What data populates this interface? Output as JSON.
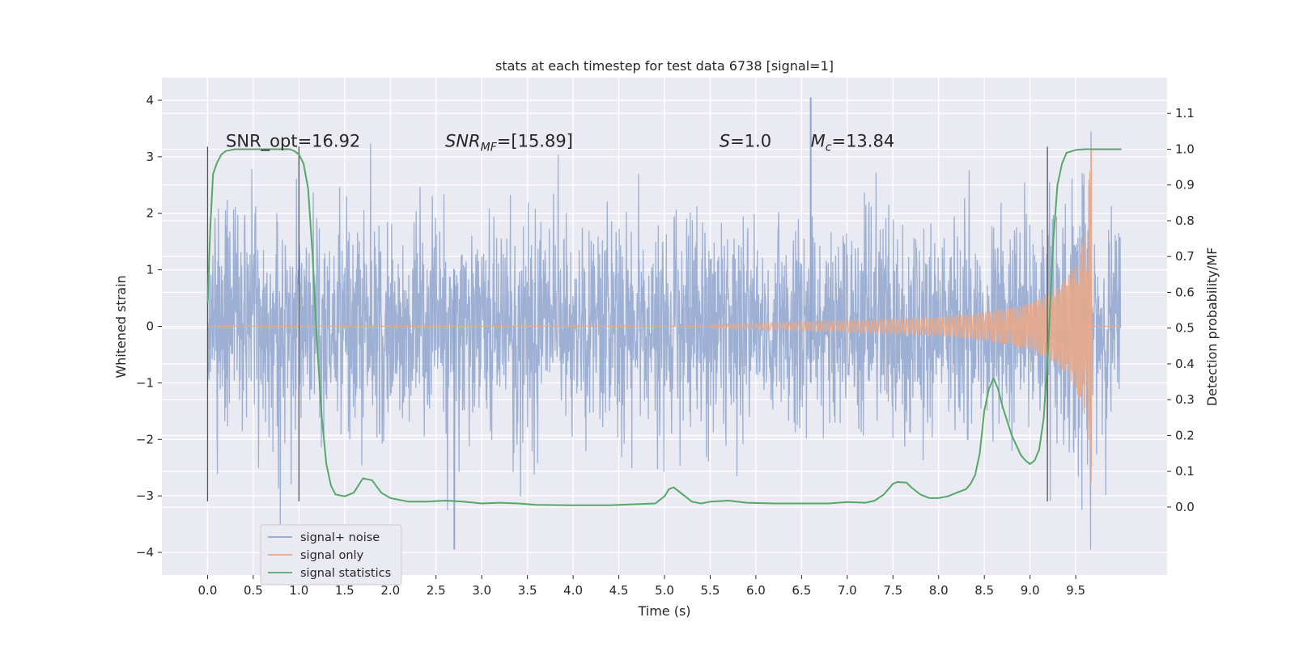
{
  "chart_data": {
    "type": "line",
    "title": "stats at each timestep for test data 6738 [signal=1]",
    "xlabel": "Time (s)",
    "ylabel": "Whitened strain",
    "y2label": "Detection probability/MF",
    "xlim": [
      -0.5,
      10.5
    ],
    "ylim": [
      -4.4,
      4.4
    ],
    "y2lim": [
      -0.19,
      1.2
    ],
    "xticks": [
      0.0,
      0.5,
      1.0,
      1.5,
      2.0,
      2.5,
      3.0,
      3.5,
      4.0,
      4.5,
      5.0,
      5.5,
      6.0,
      6.5,
      7.0,
      7.5,
      8.0,
      8.5,
      9.0,
      9.5
    ],
    "xtick_labels": [
      "0.0",
      "0.5",
      "1.0",
      "1.5",
      "2.0",
      "2.5",
      "3.0",
      "3.5",
      "4.0",
      "4.5",
      "5.0",
      "5.5",
      "6.0",
      "6.5",
      "7.0",
      "7.5",
      "8.0",
      "8.5",
      "9.0",
      "9.5"
    ],
    "yticks": [
      4,
      3,
      2,
      1,
      0,
      -1,
      -2,
      -3,
      -4
    ],
    "ytick_labels": [
      "4",
      "3",
      "2",
      "1",
      "0",
      "−1",
      "−2",
      "−3",
      "−4"
    ],
    "y2ticks": [
      1.1,
      1.0,
      0.9,
      0.8,
      0.7,
      0.6,
      0.5,
      0.4,
      0.3,
      0.2,
      0.1,
      0.0
    ],
    "y2tick_labels": [
      "1.1",
      "1.0",
      "0.9",
      "0.8",
      "0.7",
      "0.6",
      "0.5",
      "0.4",
      "0.3",
      "0.2",
      "0.1",
      "0.0"
    ],
    "grid": true,
    "legend_position": "lower-left",
    "noise_series": {
      "name": "signal+ noise",
      "color": "#8fa6cf",
      "x_range": [
        0.0,
        9.99
      ],
      "typical_envelope": [
        -1.3,
        1.3
      ],
      "max_value": 4.05,
      "min_value": -3.95
    },
    "signal_series": {
      "name": "signal only",
      "color": "#e8a98a",
      "merger_time": 9.67,
      "peak_amplitude": 3.15,
      "envelope": [
        {
          "x": 5.5,
          "amp": 0.03
        },
        {
          "x": 6.0,
          "amp": 0.06
        },
        {
          "x": 6.5,
          "amp": 0.08
        },
        {
          "x": 7.0,
          "amp": 0.1
        },
        {
          "x": 7.5,
          "amp": 0.13
        },
        {
          "x": 8.0,
          "amp": 0.17
        },
        {
          "x": 8.5,
          "amp": 0.25
        },
        {
          "x": 9.0,
          "amp": 0.42
        },
        {
          "x": 9.3,
          "amp": 0.7
        },
        {
          "x": 9.5,
          "amp": 1.1
        },
        {
          "x": 9.6,
          "amp": 1.7
        },
        {
          "x": 9.67,
          "amp": 3.15
        }
      ]
    },
    "stats_series": {
      "name": "signal statistics",
      "color": "#55a868",
      "x": [
        0.0,
        0.03,
        0.06,
        0.1,
        0.15,
        0.2,
        0.3,
        0.5,
        0.7,
        0.9,
        0.95,
        1.0,
        1.05,
        1.1,
        1.15,
        1.2,
        1.25,
        1.3,
        1.35,
        1.4,
        1.5,
        1.6,
        1.7,
        1.8,
        1.9,
        2.0,
        2.2,
        2.4,
        2.6,
        2.8,
        3.0,
        3.2,
        3.4,
        3.6,
        4.0,
        4.4,
        4.7,
        4.9,
        5.0,
        5.05,
        5.1,
        5.2,
        5.3,
        5.4,
        5.5,
        5.7,
        5.9,
        6.2,
        6.5,
        6.8,
        7.0,
        7.2,
        7.3,
        7.4,
        7.5,
        7.55,
        7.65,
        7.7,
        7.8,
        7.9,
        8.0,
        8.1,
        8.2,
        8.3,
        8.35,
        8.4,
        8.45,
        8.5,
        8.55,
        8.6,
        8.65,
        8.7,
        8.8,
        8.9,
        8.95,
        9.0,
        9.05,
        9.1,
        9.15,
        9.2,
        9.25,
        9.3,
        9.35,
        9.4,
        9.5,
        9.6,
        9.8,
        10.0
      ],
      "values": [
        0.57,
        0.78,
        0.93,
        0.96,
        0.985,
        0.995,
        1.0,
        1.0,
        1.0,
        1.0,
        0.995,
        0.985,
        0.96,
        0.89,
        0.7,
        0.45,
        0.25,
        0.12,
        0.06,
        0.035,
        0.03,
        0.04,
        0.08,
        0.075,
        0.04,
        0.025,
        0.015,
        0.015,
        0.018,
        0.015,
        0.01,
        0.012,
        0.01,
        0.006,
        0.005,
        0.005,
        0.008,
        0.01,
        0.03,
        0.05,
        0.055,
        0.035,
        0.015,
        0.01,
        0.015,
        0.018,
        0.012,
        0.01,
        0.01,
        0.01,
        0.014,
        0.012,
        0.018,
        0.035,
        0.065,
        0.07,
        0.068,
        0.055,
        0.035,
        0.025,
        0.025,
        0.03,
        0.04,
        0.05,
        0.065,
        0.09,
        0.15,
        0.27,
        0.33,
        0.36,
        0.33,
        0.28,
        0.2,
        0.145,
        0.13,
        0.12,
        0.13,
        0.16,
        0.25,
        0.45,
        0.73,
        0.9,
        0.96,
        0.99,
        0.998,
        1.0,
        1.0,
        1.0
      ]
    },
    "vertical_lines": [
      {
        "x": 0.0,
        "y_from": -3.1,
        "y_to": 3.18
      },
      {
        "x": 1.0,
        "y_from": -3.1,
        "y_to": 3.18
      },
      {
        "x": 9.19,
        "y_from": -3.1,
        "y_to": 3.18
      }
    ],
    "annotations": [
      {
        "text": "SNR_opt=16.92",
        "x": 0.2,
        "y": 3.18,
        "italic": false
      },
      {
        "text": "SNR_MF=[15.89]",
        "x": 2.6,
        "y": 3.18,
        "italic": true,
        "main": "SNR",
        "sub": "MF",
        "rest": "=[15.89]"
      },
      {
        "text": "S=1.0",
        "x": 5.6,
        "y": 3.18,
        "italic": true,
        "main": "S",
        "sub": "",
        "rest": "=1.0"
      },
      {
        "text": "M_c=13.84",
        "x": 6.6,
        "y": 3.18,
        "italic": true,
        "main": "M",
        "sub": "c",
        "rest": "=13.84"
      }
    ],
    "legend": [
      {
        "label": "signal+ noise",
        "color": "#8fa6cf"
      },
      {
        "label": "signal only",
        "color": "#e8a98a"
      },
      {
        "label": "signal statistics",
        "color": "#55a868"
      }
    ]
  }
}
